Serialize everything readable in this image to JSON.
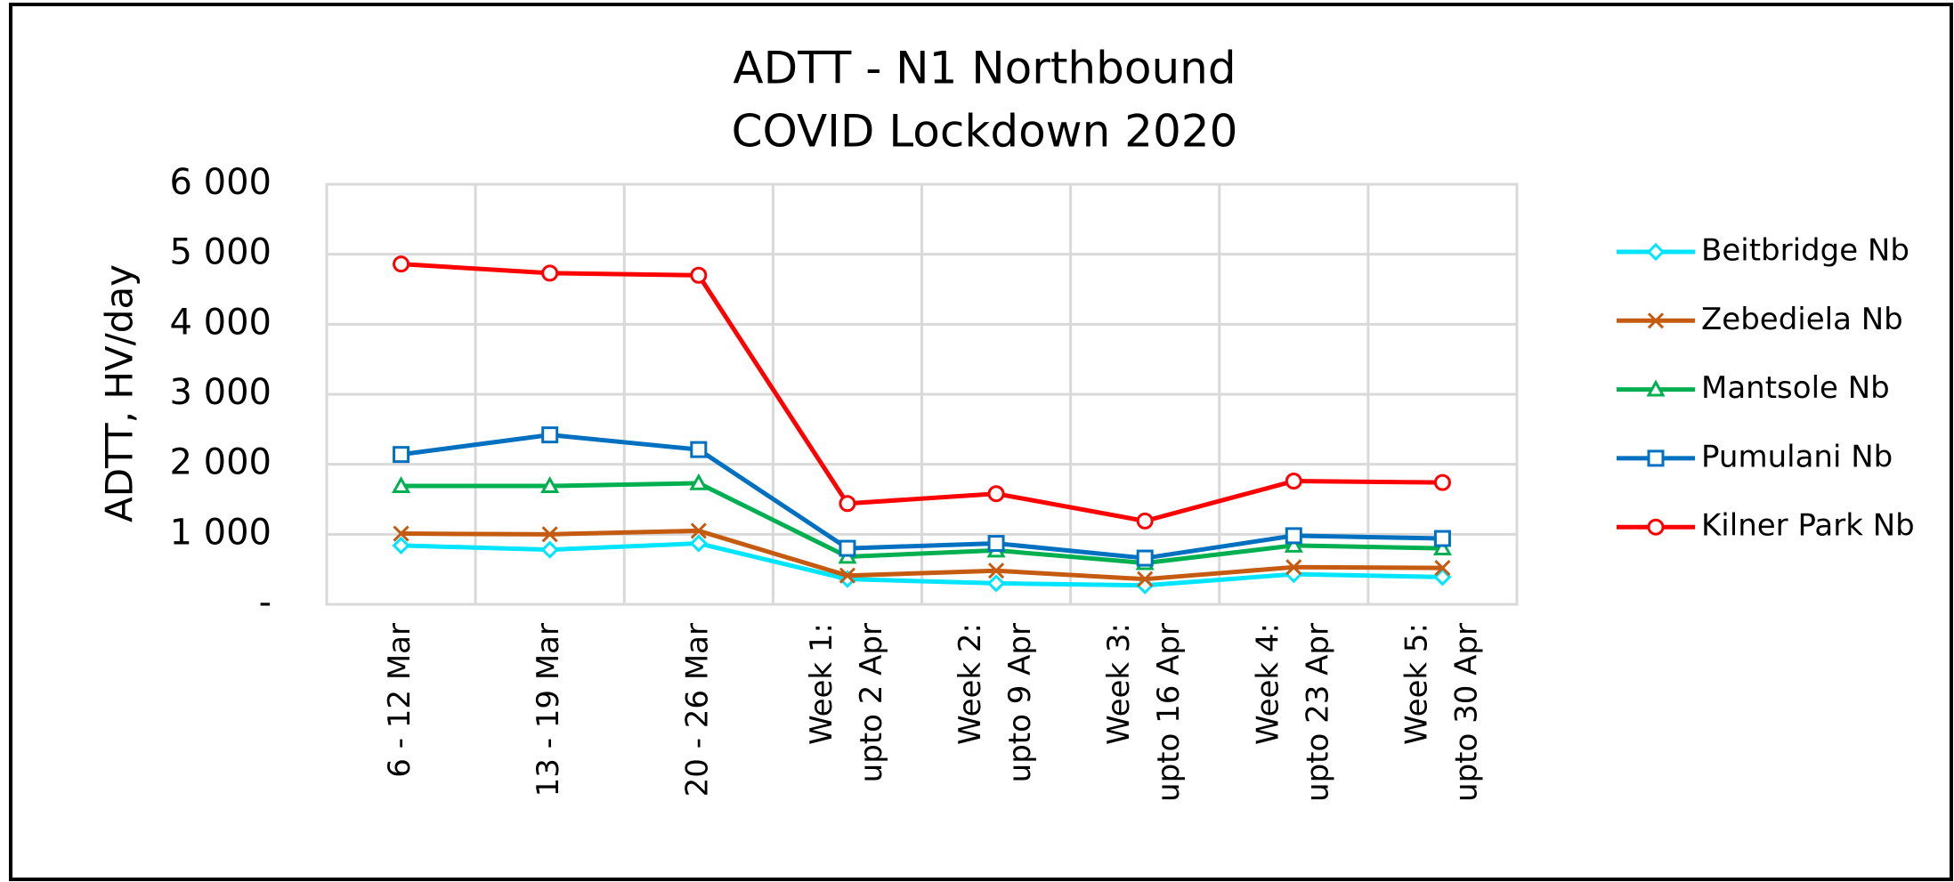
{
  "chart_data": {
    "type": "line",
    "title": [
      "ADTT - N1 Northbound",
      "COVID Lockdown 2020"
    ],
    "y_label": "ADTT, HV/day",
    "categories": [
      "6 - 12 Mar",
      "13 - 19 Mar",
      "20 - 26 Mar",
      "Week 1: upto 2 Apr",
      "Week 2: upto 9 Apr",
      "Week 3: upto 16 Apr",
      "Week 4: upto 23 Apr",
      "Week 5: upto 30 Apr"
    ],
    "series": [
      {
        "name": "Beitbridge Nb",
        "color": "#00e5ff",
        "marker": "diamond",
        "values": [
          840,
          780,
          870,
          360,
          300,
          270,
          430,
          390
        ]
      },
      {
        "name": "Zebediela Nb",
        "color": "#c55a11",
        "marker": "x",
        "values": [
          1010,
          1000,
          1050,
          410,
          480,
          360,
          530,
          520
        ]
      },
      {
        "name": "Mantsole Nb",
        "color": "#00b050",
        "marker": "triangle",
        "values": [
          1690,
          1690,
          1730,
          680,
          770,
          590,
          840,
          800
        ]
      },
      {
        "name": "Pumulani Nb",
        "color": "#0070c0",
        "marker": "square",
        "values": [
          2140,
          2420,
          2210,
          800,
          870,
          660,
          980,
          940
        ]
      },
      {
        "name": "Kilner Park Nb",
        "color": "#ff0000",
        "marker": "circle",
        "values": [
          4860,
          4730,
          4700,
          1440,
          1580,
          1190,
          1760,
          1740
        ]
      }
    ],
    "ylim": [
      0,
      6000
    ],
    "yticks": [
      {
        "value": 0,
        "label": "-"
      },
      {
        "value": 1000,
        "label": "1 000"
      },
      {
        "value": 2000,
        "label": "2 000"
      },
      {
        "value": 3000,
        "label": "3 000"
      },
      {
        "value": 4000,
        "label": "4 000"
      },
      {
        "value": 5000,
        "label": "5 000"
      },
      {
        "value": 6000,
        "label": "6 000"
      }
    ],
    "grid": true,
    "legend": "right"
  }
}
